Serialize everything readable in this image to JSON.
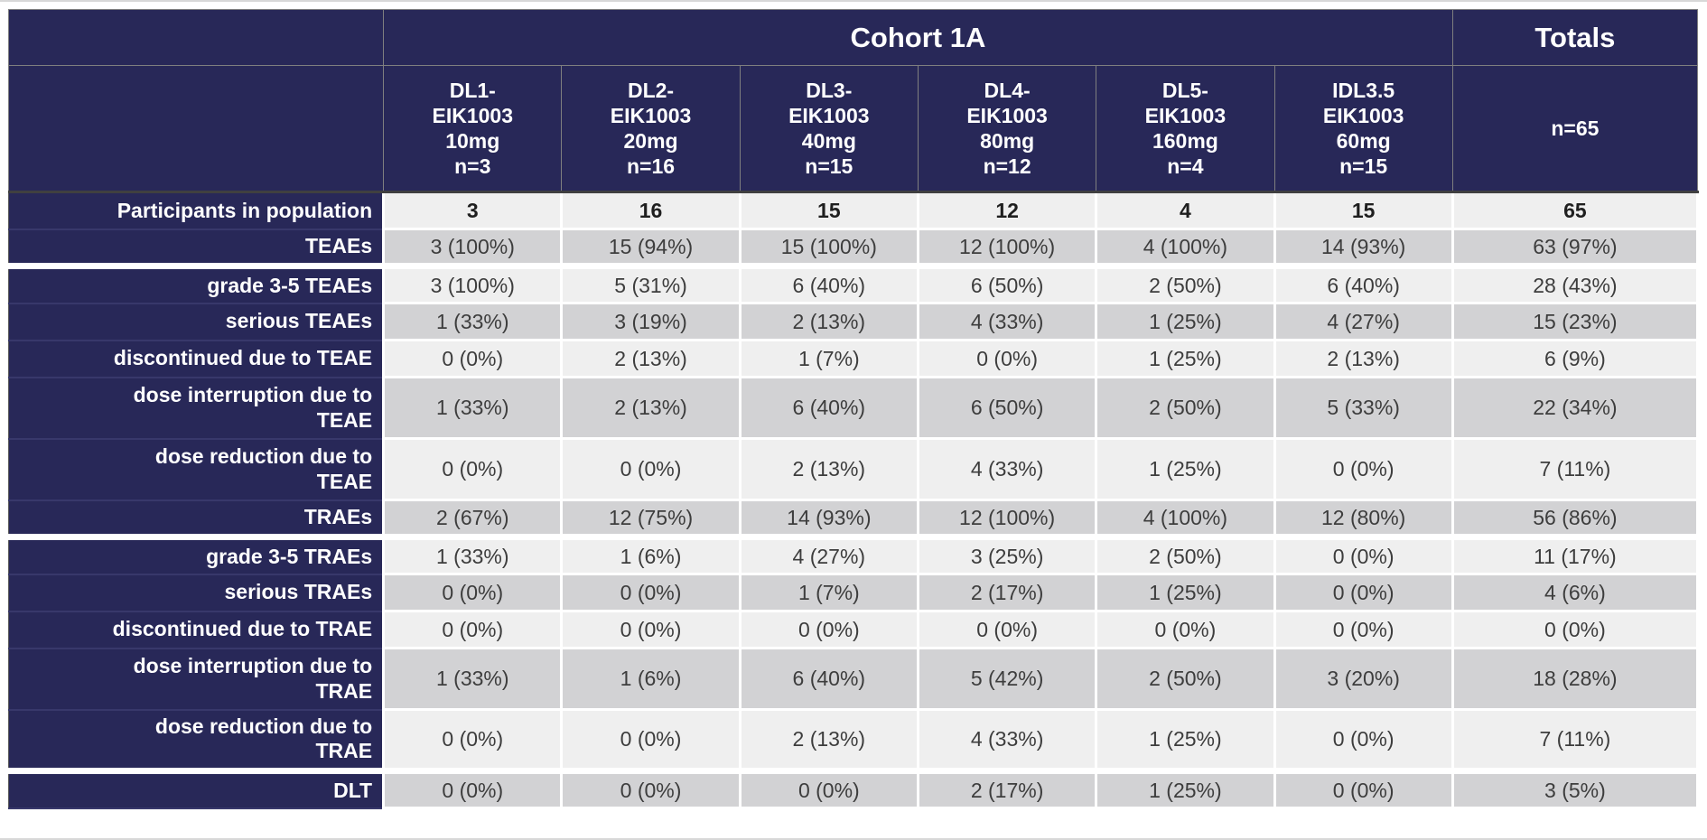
{
  "chart_data": {
    "type": "table",
    "title": "Cohort 1A",
    "totals_label": "Totals",
    "totals_n": "n=65",
    "columns": [
      "DL1-\nEIK1003\n10mg\nn=3",
      "DL2-\nEIK1003\n20mg\nn=16",
      "DL3-\nEIK1003\n40mg\nn=15",
      "DL4-\nEIK1003\n80mg\nn=12",
      "DL5-\nEIK1003\n160mg\nn=4",
      "IDL3.5\nEIK1003\n60mg\nn=15"
    ],
    "rows": [
      {
        "label": "Participants in population",
        "values": [
          "3",
          "16",
          "15",
          "12",
          "4",
          "15",
          "65"
        ],
        "bold": true,
        "group_start": false,
        "two_line": false
      },
      {
        "label": "TEAEs",
        "values": [
          "3 (100%)",
          "15 (94%)",
          "15 (100%)",
          "12 (100%)",
          "4 (100%)",
          "14 (93%)",
          "63 (97%)"
        ],
        "bold": false,
        "group_start": false,
        "two_line": false
      },
      {
        "label": "grade 3-5 TEAEs",
        "values": [
          "3 (100%)",
          "5 (31%)",
          "6 (40%)",
          "6 (50%)",
          "2 (50%)",
          "6 (40%)",
          "28 (43%)"
        ],
        "bold": false,
        "group_start": true,
        "two_line": false
      },
      {
        "label": "serious TEAEs",
        "values": [
          "1 (33%)",
          "3 (19%)",
          "2 (13%)",
          "4 (33%)",
          "1 (25%)",
          "4 (27%)",
          "15 (23%)"
        ],
        "bold": false,
        "group_start": false,
        "two_line": false
      },
      {
        "label": "discontinued due to TEAE",
        "values": [
          "0 (0%)",
          "2 (13%)",
          "1 (7%)",
          "0 (0%)",
          "1 (25%)",
          "2 (13%)",
          "6 (9%)"
        ],
        "bold": false,
        "group_start": false,
        "two_line": false
      },
      {
        "label": "dose interruption due to\nTEAE",
        "values": [
          "1 (33%)",
          "2 (13%)",
          "6 (40%)",
          "6 (50%)",
          "2 (50%)",
          "5 (33%)",
          "22 (34%)"
        ],
        "bold": false,
        "group_start": false,
        "two_line": true
      },
      {
        "label": "dose reduction due to\nTEAE",
        "values": [
          "0 (0%)",
          "0 (0%)",
          "2 (13%)",
          "4 (33%)",
          "1 (25%)",
          "0 (0%)",
          "7 (11%)"
        ],
        "bold": false,
        "group_start": false,
        "two_line": true
      },
      {
        "label": "TRAEs",
        "values": [
          "2 (67%)",
          "12 (75%)",
          "14 (93%)",
          "12 (100%)",
          "4 (100%)",
          "12 (80%)",
          "56 (86%)"
        ],
        "bold": false,
        "group_start": false,
        "two_line": false
      },
      {
        "label": "grade 3-5 TRAEs",
        "values": [
          "1 (33%)",
          "1 (6%)",
          "4 (27%)",
          "3 (25%)",
          "2 (50%)",
          "0 (0%)",
          "11 (17%)"
        ],
        "bold": false,
        "group_start": true,
        "two_line": false
      },
      {
        "label": "serious TRAEs",
        "values": [
          "0 (0%)",
          "0 (0%)",
          "1 (7%)",
          "2 (17%)",
          "1 (25%)",
          "0 (0%)",
          "4 (6%)"
        ],
        "bold": false,
        "group_start": false,
        "two_line": false
      },
      {
        "label": "discontinued due to TRAE",
        "values": [
          "0 (0%)",
          "0 (0%)",
          "0 (0%)",
          "0 (0%)",
          "0 (0%)",
          "0 (0%)",
          "0 (0%)"
        ],
        "bold": false,
        "group_start": false,
        "two_line": false
      },
      {
        "label": "dose interruption due to\nTRAE",
        "values": [
          "1 (33%)",
          "1 (6%)",
          "6 (40%)",
          "5 (42%)",
          "2 (50%)",
          "3 (20%)",
          "18 (28%)"
        ],
        "bold": false,
        "group_start": false,
        "two_line": true
      },
      {
        "label": "dose reduction due to\nTRAE",
        "values": [
          "0 (0%)",
          "0 (0%)",
          "2 (13%)",
          "4 (33%)",
          "1 (25%)",
          "0 (0%)",
          "7 (11%)"
        ],
        "bold": false,
        "group_start": false,
        "two_line": true
      },
      {
        "label": "DLT",
        "values": [
          "0 (0%)",
          "0 (0%)",
          "0 (0%)",
          "2 (17%)",
          "1 (25%)",
          "0 (0%)",
          "3 (5%)"
        ],
        "bold": false,
        "group_start": true,
        "two_line": false
      }
    ],
    "colors": {
      "header_bg": "#282858",
      "row_light": "#efefef",
      "row_dark": "#d2d2d4",
      "header_text": "#ffffff",
      "data_text": "#3d3d3d"
    },
    "layout": {
      "legend_position": "none",
      "grid": "off"
    }
  }
}
